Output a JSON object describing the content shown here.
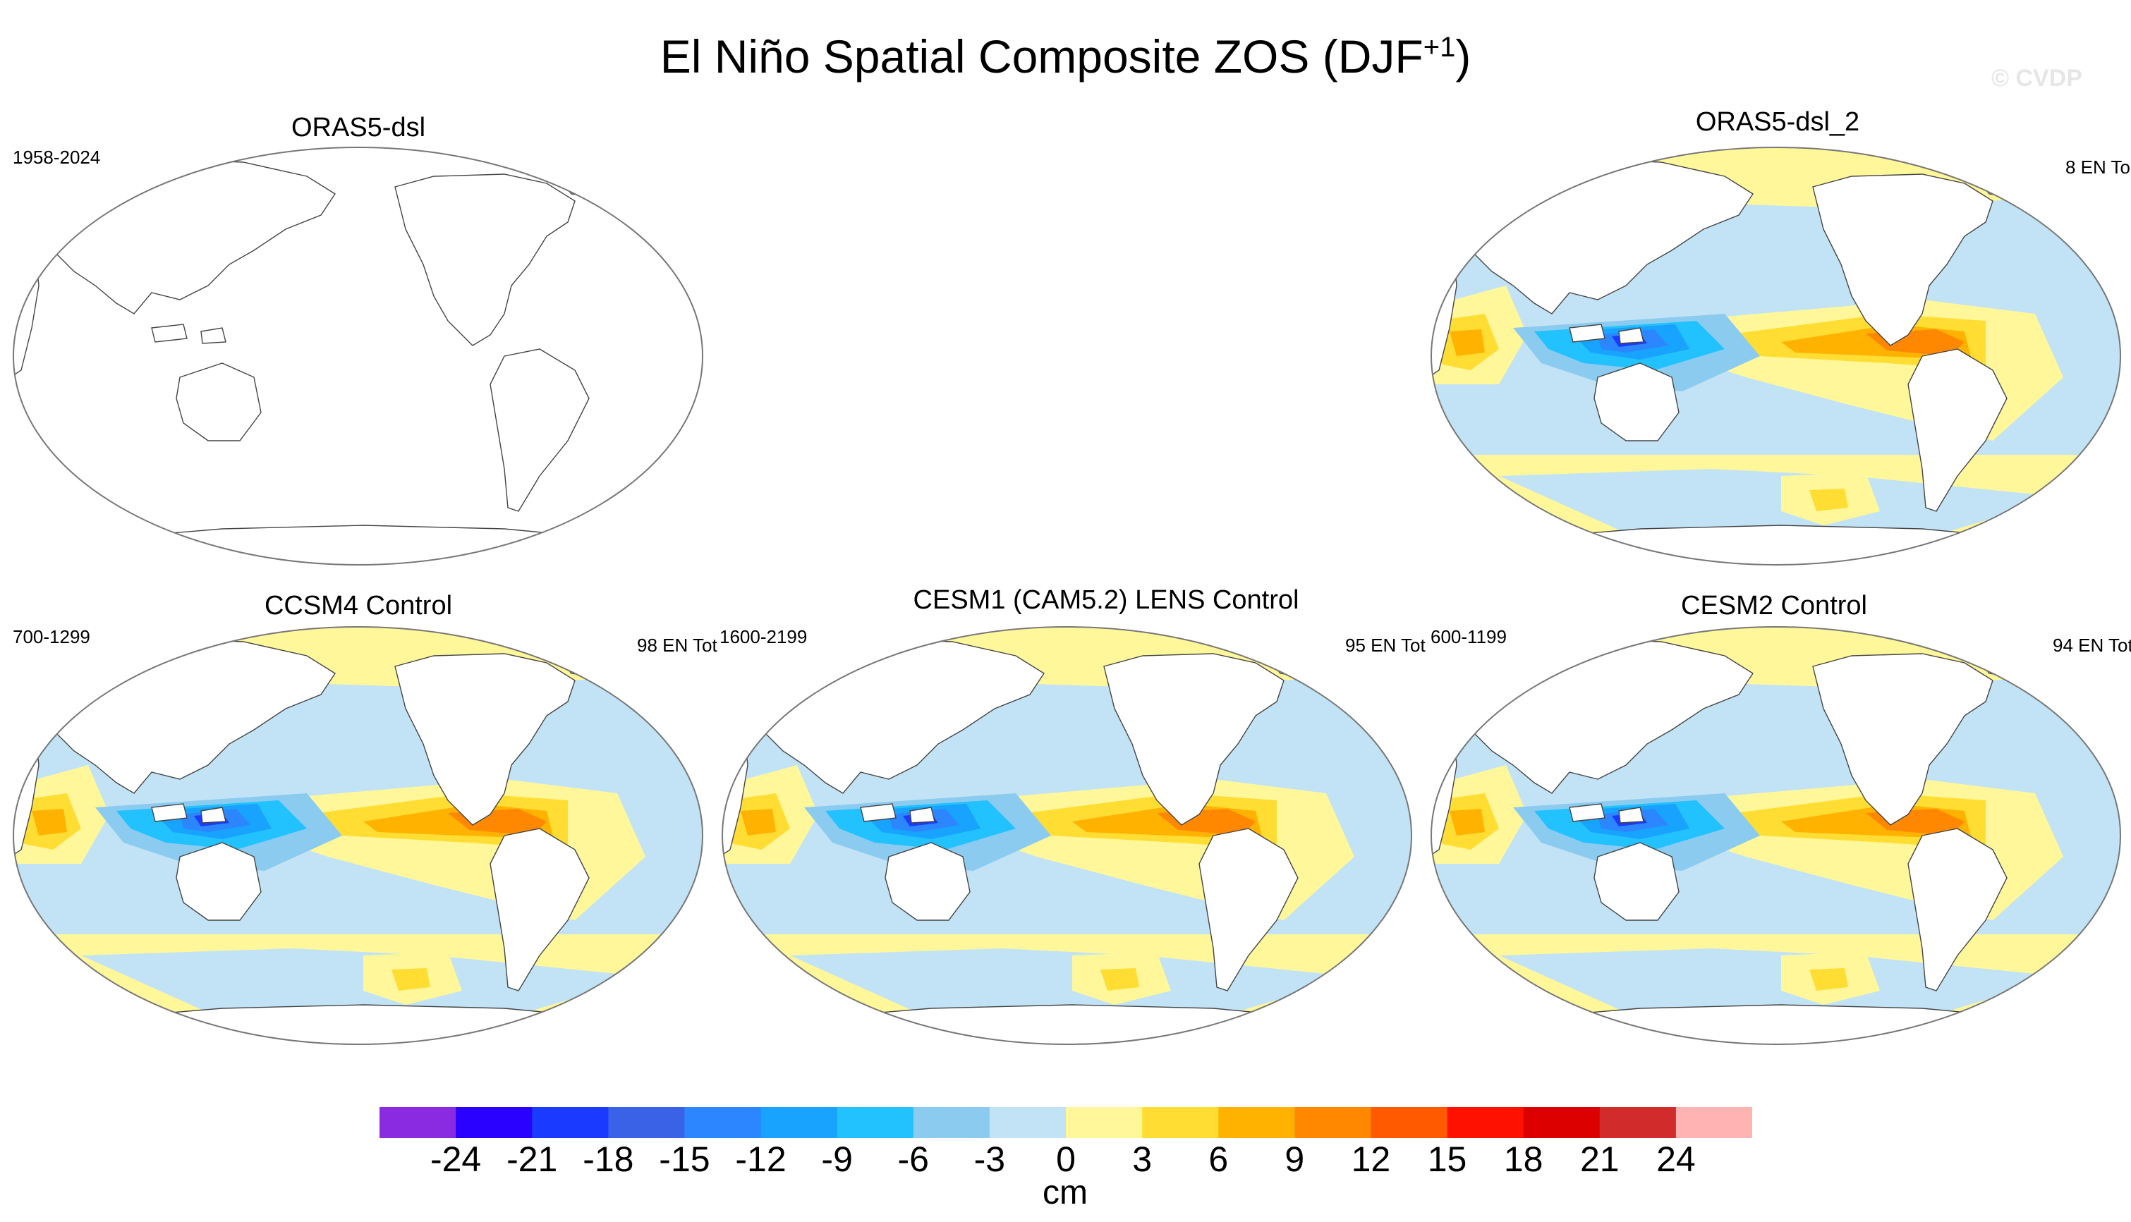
{
  "title": {
    "main": "El Niño Spatial Composite ZOS (DJF",
    "sup": "+1",
    "close": ")"
  },
  "watermark": "© CVDP",
  "panels": [
    {
      "id": "p1",
      "title": "ORAS5-dsl",
      "left_label": "1958-2024",
      "right_label": "",
      "filled": false
    },
    {
      "id": "p2",
      "title": "ORAS5-dsl_2",
      "left_label": "",
      "right_label": "8 EN To",
      "filled": true
    },
    {
      "id": "p3",
      "title": "CCSM4 Control",
      "left_label": "700-1299",
      "right_label": "98 EN Tot",
      "filled": true
    },
    {
      "id": "p4",
      "title": "CESM1 (CAM5.2) LENS Control",
      "left_label": "1600-2199",
      "right_label": "95 EN Tot",
      "filled": true
    },
    {
      "id": "p5",
      "title": "CESM2 Control",
      "left_label": "600-1199",
      "right_label": "94 EN Tot",
      "filled": true
    }
  ],
  "colorbar": {
    "unit": "cm",
    "ticks": [
      "-24",
      "-21",
      "-18",
      "-15",
      "-12",
      "-9",
      "-6",
      "-3",
      "0",
      "3",
      "6",
      "9",
      "12",
      "15",
      "18",
      "21",
      "24"
    ],
    "colors": [
      "#8a2be2",
      "#2a00ff",
      "#1a3bff",
      "#3a62e6",
      "#2b86ff",
      "#17a3ff",
      "#22c1ff",
      "#8ccbf0",
      "#c2e3f5",
      "#fff79a",
      "#ffdd33",
      "#ffb300",
      "#ff8800",
      "#ff5a00",
      "#ff1100",
      "#dd0000",
      "#d22b2b",
      "#ffb3b3"
    ]
  }
}
